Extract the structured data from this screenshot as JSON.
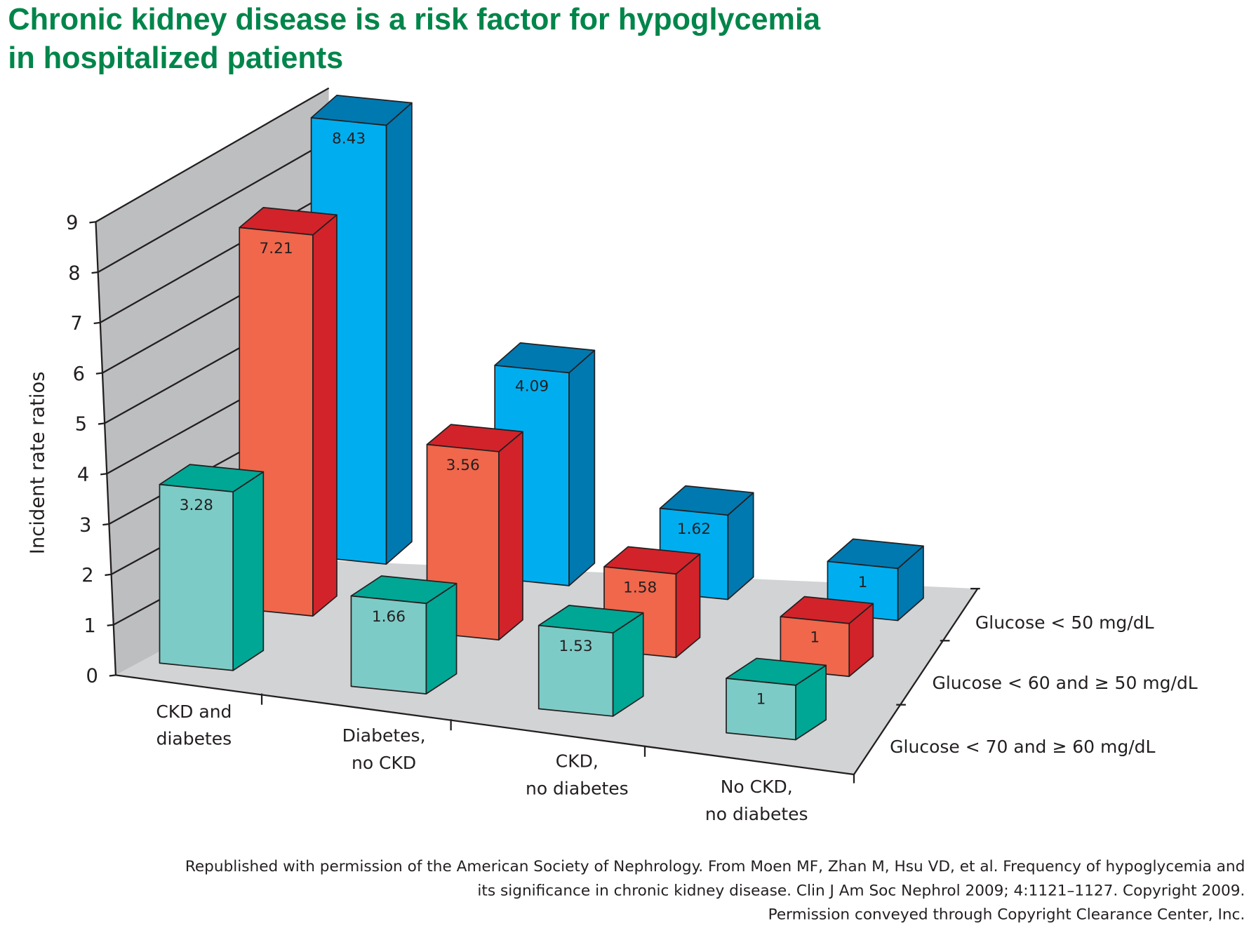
{
  "chart_data": {
    "type": "bar",
    "title": [
      "Chronic kidney disease is a risk factor for hypoglycemia",
      "in hospitalized patients"
    ],
    "ylabel": "Incident rate ratios",
    "ylim": [
      0,
      9
    ],
    "yticks": [
      "0",
      "1",
      "2",
      "3",
      "4",
      "5",
      "6",
      "7",
      "8",
      "9"
    ],
    "categories": [
      [
        "CKD and",
        "diabetes"
      ],
      [
        "Diabetes,",
        "no CKD"
      ],
      [
        "CKD,",
        "no diabetes"
      ],
      [
        "No CKD,",
        "no diabetes"
      ]
    ],
    "series": [
      {
        "name": "Glucose < 70 and ≥ 60 mg/dL",
        "values": [
          3.28,
          1.66,
          1.53,
          1
        ],
        "labels": [
          "3.28",
          "1.66",
          "1.53",
          "1"
        ],
        "color": "#7dcbc6",
        "dark": "#00a795"
      },
      {
        "name": "Glucose < 60 and ≥ 50 mg/dL",
        "values": [
          7.21,
          3.56,
          1.58,
          1
        ],
        "labels": [
          "7.21",
          "3.56",
          "1.58",
          "1"
        ],
        "color": "#f0674c",
        "dark": "#d2232a"
      },
      {
        "name": "Glucose < 50 mg/dL",
        "values": [
          8.43,
          4.09,
          1.62,
          1
        ],
        "labels": [
          "8.43",
          "4.09",
          "1.62",
          "1"
        ],
        "color": "#00aeef",
        "dark": "#0079b0"
      }
    ],
    "grid": true,
    "style": "3d"
  },
  "footer": [
    "Republished with permission of the American Society of Nephrology. From Moen MF, Zhan M, Hsu VD, et al. Frequency of hypoglycemia and",
    "its significance in chronic kidney disease. Clin J Am Soc Nephrol 2009; 4:1121–1127. Copyright 2009.",
    "Permission conveyed through Copyright Clearance Center, Inc."
  ]
}
